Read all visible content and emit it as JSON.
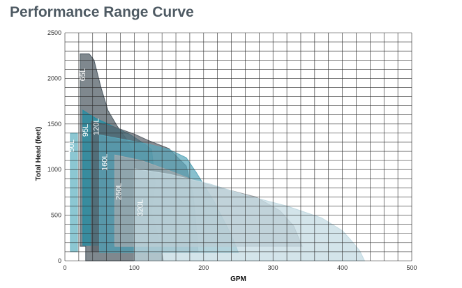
{
  "title": "Performance Range Curve",
  "chart_data": {
    "type": "area",
    "title": "Performance Range Curve",
    "xlabel": "GPM",
    "ylabel": "Total Head (feet)",
    "xlim": [
      0,
      500
    ],
    "ylim": [
      0,
      2500
    ],
    "x_ticks": [
      "0",
      "100",
      "200",
      "300",
      "400",
      "500"
    ],
    "y_ticks": [
      "0",
      "500",
      "1000",
      "1500",
      "2000",
      "2500"
    ],
    "grid": true,
    "series": [
      {
        "name": "65L",
        "color": "#4d5a63",
        "outline": [
          [
            22,
            160
          ],
          [
            22,
            2270
          ],
          [
            35,
            2270
          ],
          [
            42,
            2200
          ],
          [
            52,
            1900
          ],
          [
            62,
            1650
          ],
          [
            75,
            1480
          ],
          [
            90,
            1320
          ],
          [
            100,
            1150
          ],
          [
            112,
            850
          ],
          [
            125,
            520
          ],
          [
            135,
            260
          ],
          [
            142,
            0
          ],
          [
            30,
            0
          ],
          [
            30,
            160
          ]
        ]
      },
      {
        "name": "95L",
        "color": "#1f8ea5",
        "outline": [
          [
            26,
            170
          ],
          [
            26,
            1650
          ],
          [
            45,
            1560
          ],
          [
            65,
            1490
          ],
          [
            95,
            1380
          ],
          [
            115,
            1280
          ],
          [
            125,
            1220
          ],
          [
            130,
            850
          ],
          [
            118,
            120
          ],
          [
            50,
            120
          ],
          [
            50,
            170
          ]
        ]
      },
      {
        "name": "120L",
        "color": "#5b636b",
        "outline": [
          [
            38,
            180
          ],
          [
            38,
            1530
          ],
          [
            70,
            1470
          ],
          [
            100,
            1390
          ],
          [
            120,
            1320
          ],
          [
            150,
            1230
          ],
          [
            175,
            1040
          ],
          [
            185,
            720
          ],
          [
            190,
            300
          ],
          [
            192,
            100
          ],
          [
            38,
            100
          ]
        ]
      },
      {
        "name": "160L",
        "color": "#5aa8bb",
        "outline": [
          [
            50,
            180
          ],
          [
            50,
            1380
          ],
          [
            85,
            1330
          ],
          [
            120,
            1280
          ],
          [
            150,
            1220
          ],
          [
            175,
            1130
          ],
          [
            190,
            960
          ],
          [
            215,
            650
          ],
          [
            240,
            280
          ],
          [
            250,
            90
          ],
          [
            50,
            90
          ]
        ]
      },
      {
        "name": "250L",
        "color": "#a5aaae",
        "outline": [
          [
            72,
            160
          ],
          [
            72,
            1160
          ],
          [
            110,
            1100
          ],
          [
            150,
            990
          ],
          [
            190,
            870
          ],
          [
            230,
            790
          ],
          [
            275,
            700
          ],
          [
            310,
            550
          ],
          [
            330,
            380
          ],
          [
            342,
            160
          ]
        ]
      },
      {
        "name": "320L",
        "color": "#c2dae2",
        "outline": [
          [
            100,
            120
          ],
          [
            100,
            1010
          ],
          [
            150,
            950
          ],
          [
            210,
            840
          ],
          [
            260,
            720
          ],
          [
            320,
            600
          ],
          [
            370,
            470
          ],
          [
            400,
            330
          ],
          [
            412,
            230
          ],
          [
            425,
            110
          ],
          [
            432,
            0
          ],
          [
            100,
            0
          ]
        ]
      },
      {
        "name": "50L",
        "color": "#5fb2c1",
        "outline": [
          [
            8,
            100
          ],
          [
            8,
            1400
          ],
          [
            18,
            1400
          ],
          [
            18,
            100
          ]
        ]
      }
    ],
    "annotations": [
      "65L",
      "95L",
      "120L",
      "160L",
      "250L",
      "320L",
      "50L"
    ]
  }
}
